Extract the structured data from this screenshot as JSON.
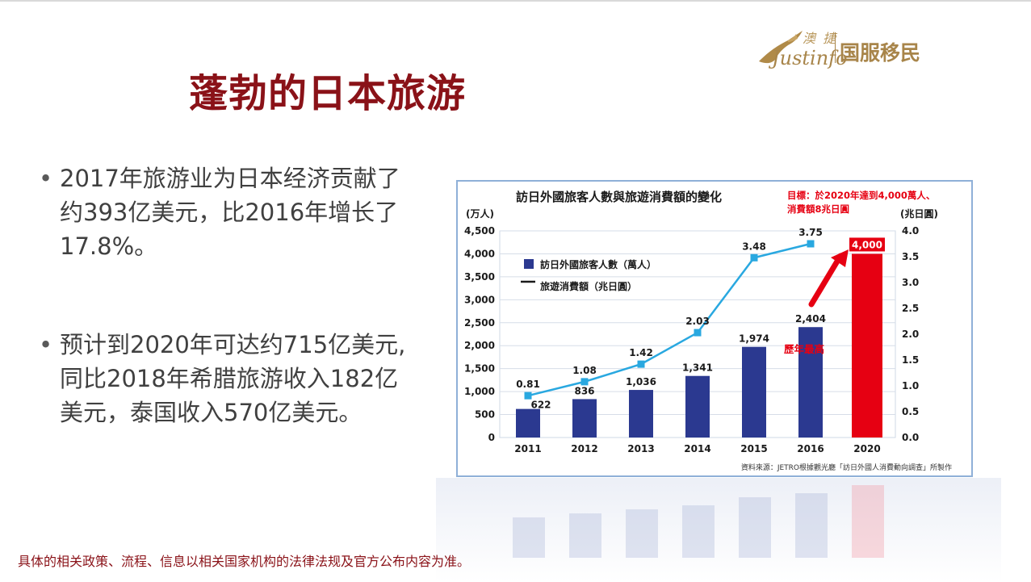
{
  "slide": {
    "title": "蓬勃的日本旅游",
    "bullets": [
      "2017年旅游业为日本经济贡献了约393亿美元，比2016年增长了17.8%。",
      "预计到2020年可达约715亿美元, 同比2018年希腊旅游收入182亿美元，泰国收入570亿美元。"
    ],
    "footer": "具体的相关政策、流程、信息以相关国家机构的法律法规及官方公布内容为准。"
  },
  "logo": {
    "cn_small": "澳 捷",
    "en": "Justinfo",
    "main": "国服移民"
  },
  "colors": {
    "title": "#8a1218",
    "bar": "#2b3990",
    "bar_highlight": "#e60012",
    "line": "#29a8e0",
    "target_text": "#e60012"
  },
  "chart_data": {
    "type": "bar",
    "title": "訪日外國旅客人數與旅遊消費額的變化",
    "target_note": [
      "目標：於2020年達到4,000萬人、",
      "消費額8兆日圓"
    ],
    "left_unit": "(万人)",
    "right_unit": "(兆日圓)",
    "categories": [
      "2011",
      "2012",
      "2013",
      "2014",
      "2015",
      "2016",
      "2020"
    ],
    "series": [
      {
        "name": "訪日外國旅客人數（萬人）",
        "type": "bar",
        "axis": "left",
        "values": [
          622,
          836,
          1036,
          1341,
          1974,
          2404,
          4000
        ],
        "labels": [
          "622",
          "836",
          "1,036",
          "1,341",
          "1,974",
          "2,404",
          "4,000"
        ]
      },
      {
        "name": "旅遊消費額（兆日圓）",
        "type": "line",
        "axis": "right",
        "values": [
          0.81,
          1.08,
          1.42,
          2.03,
          3.48,
          3.75,
          null
        ],
        "labels": [
          "0.81",
          "1.08",
          "1.42",
          "2.03",
          "3.48",
          "3.75",
          ""
        ]
      }
    ],
    "left_axis": {
      "min": 0,
      "max": 4500,
      "step": 500,
      "ticks": [
        "0",
        "500",
        "1,000",
        "1,500",
        "2,000",
        "2,500",
        "3,000",
        "3,500",
        "4,000",
        "4,500"
      ]
    },
    "right_axis": {
      "min": 0,
      "max": 4,
      "step": 0.5,
      "ticks": [
        "0.0",
        "0.5",
        "1.0",
        "1.5",
        "2.0",
        "2.5",
        "3.0",
        "3.5",
        "4.0"
      ]
    },
    "highlight_index": 6,
    "annotation": "歷年最高",
    "source": "資料來源：JETRO根據觀光廳「訪日外國人消費動向調查」所製作",
    "grid": true,
    "legend": "top-left"
  }
}
